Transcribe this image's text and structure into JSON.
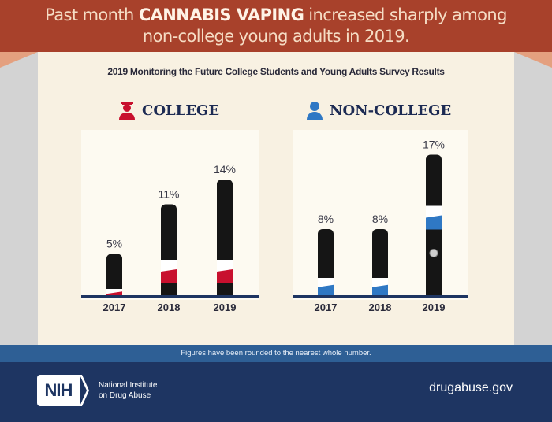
{
  "header": {
    "pre": "Past month ",
    "emph": "CANNABIS VAPING",
    "post": " increased sharply among",
    "line2": "non-college young adults in 2019."
  },
  "subtitle": "2019 Monitoring the Future College Students and Young Adults Survey Results",
  "footer": {
    "note": "Figures have been rounded to the nearest whole number.",
    "logo": "NIH",
    "org_line1": "National Institute",
    "org_line2": "on Drug Abuse",
    "url": "drugabuse.gov"
  },
  "colors": {
    "header": "#a8412b",
    "college": "#c8102e",
    "non_college": "#2f78c4",
    "navy": "#1e3562"
  },
  "chart_data": [
    {
      "type": "bar",
      "title": "COLLEGE",
      "icon": "graduate-icon",
      "categories": [
        "2017",
        "2018",
        "2019"
      ],
      "values": [
        5,
        11,
        14
      ],
      "labels": [
        "5%",
        "11%",
        "14%"
      ],
      "unit": "%",
      "color": "#c8102e"
    },
    {
      "type": "bar",
      "title": "NON-COLLEGE",
      "icon": "person-icon",
      "categories": [
        "2017",
        "2018",
        "2019"
      ],
      "values": [
        8,
        8,
        17
      ],
      "labels": [
        "8%",
        "8%",
        "17%"
      ],
      "unit": "%",
      "color": "#2f78c4"
    }
  ]
}
